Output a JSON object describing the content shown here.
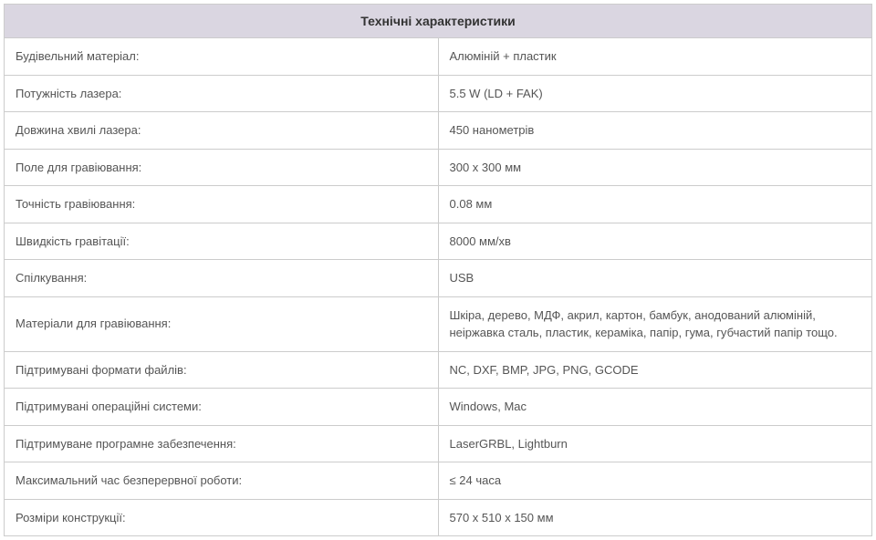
{
  "table": {
    "title": "Технічні характеристики",
    "header_bg": "#dad6e1",
    "border_color": "#cccccc",
    "text_color": "#555555",
    "title_color": "#333333",
    "font_family": "Arial, sans-serif",
    "title_fontsize": 14,
    "cell_fontsize": 13,
    "col_widths": [
      "50%",
      "50%"
    ],
    "rows": [
      {
        "label": "Будівельний матеріал:",
        "value": "Алюміній + пластик"
      },
      {
        "label": "Потужність лазера:",
        "value": "5.5 W (LD + FAK)"
      },
      {
        "label": "Довжина хвилі лазера:",
        "value": "450 нанометрів"
      },
      {
        "label": "Поле для гравіювання:",
        "value": "300 x 300 мм"
      },
      {
        "label": "Точність гравіювання:",
        "value": "0.08 мм"
      },
      {
        "label": "Швидкість гравітації:",
        "value": "8000 мм/хв"
      },
      {
        "label": "Спілкування:",
        "value": "USB"
      },
      {
        "label": "Матеріали для гравіювання:",
        "value": "Шкіра, дерево, МДФ, акрил, картон, бамбук, анодований алюміній, неіржавка сталь, пластик, кераміка, папір, гума, губчастий папір тощо."
      },
      {
        "label": "Підтримувані формати файлів:",
        "value": "NC, DXF, BMP, JPG, PNG, GCODE"
      },
      {
        "label": "Підтримувані операційні системи:",
        "value": "Windows, Mac"
      },
      {
        "label": "Підтримуване програмне забезпечення:",
        "value": "LaserGRBL, Lightburn"
      },
      {
        "label": "Максимальний час безперервної роботи:",
        "value": "≤ 24 часа"
      },
      {
        "label": "Розміри конструкції:",
        "value": "570 x 510 x 150 мм"
      }
    ]
  }
}
